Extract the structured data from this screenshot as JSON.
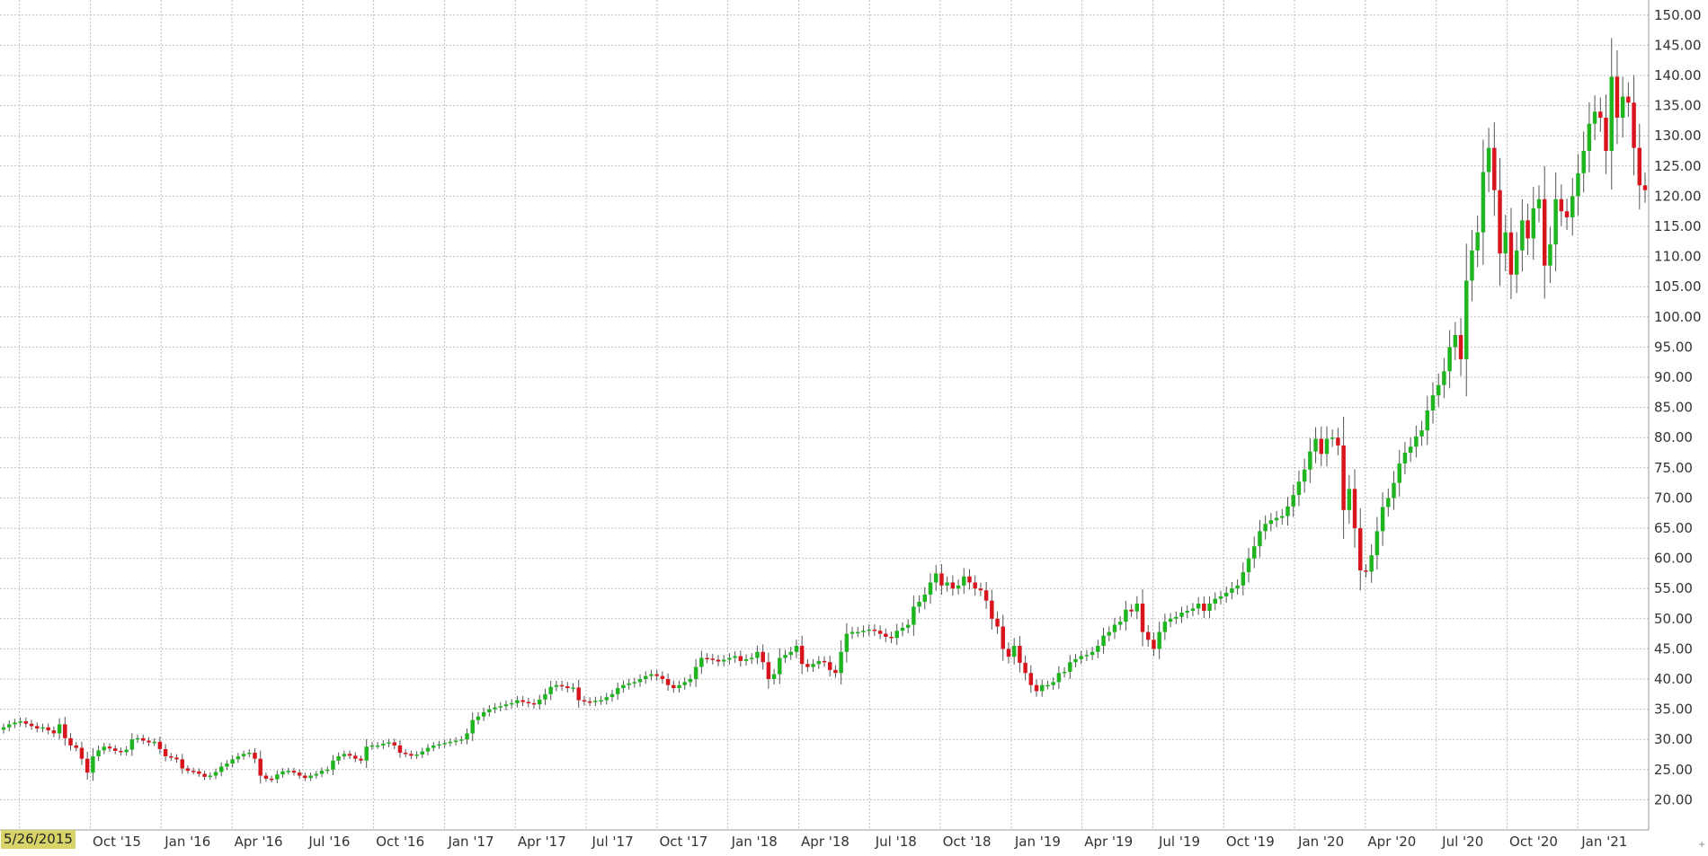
{
  "chart_data": {
    "type": "candlestick",
    "title": "",
    "xlabel": "",
    "ylabel": "",
    "start_label": "5/26/2015",
    "corner_glyph": "+",
    "ylim": [
      15,
      152.5
    ],
    "y_ticks": [
      "150.00",
      "145.00",
      "140.00",
      "135.00",
      "130.00",
      "125.00",
      "120.00",
      "115.00",
      "110.00",
      "105.00",
      "100.00",
      "95.00",
      "90.00",
      "85.00",
      "80.00",
      "75.00",
      "70.00",
      "65.00",
      "60.00",
      "55.00",
      "50.00",
      "45.00",
      "40.00",
      "35.00",
      "30.00",
      "25.00",
      "20.00"
    ],
    "x_ticks": [
      "Oct '15",
      "Jan '16",
      "Apr '16",
      "Jul '16",
      "Oct '16",
      "Jan '17",
      "Apr '17",
      "Jul '17",
      "Oct '17",
      "Jan '18",
      "Apr '18",
      "Jul '18",
      "Oct '18",
      "Jan '19",
      "Apr '19",
      "Jul '19",
      "Oct '19",
      "Jan '20",
      "Apr '20",
      "Jul '20",
      "Oct '20",
      "Jan '21"
    ],
    "grid": true,
    "colors": {
      "up": "#1fb51f",
      "down": "#d8141c",
      "grid": "#bdbdbd",
      "wick": "#555555",
      "badge": "#d8d46a"
    },
    "closes": [
      32,
      32.5,
      32.8,
      33,
      32.6,
      32.2,
      31.8,
      32,
      31.5,
      31,
      32.5,
      30.2,
      29,
      28.6,
      26.8,
      24.5,
      27.2,
      28.2,
      28.8,
      28.5,
      28.1,
      27.9,
      28.3,
      30,
      30.2,
      29.8,
      29.5,
      29.6,
      28.4,
      27.2,
      27,
      26.7,
      25.2,
      24.8,
      24.7,
      24.3,
      23.8,
      24,
      24.6,
      25.5,
      26,
      26.7,
      27.2,
      27.6,
      27.8,
      26.8,
      24,
      23.5,
      23.4,
      24.2,
      24.7,
      24.8,
      24.5,
      24,
      23.6,
      24,
      24.3,
      24.8,
      25,
      26.5,
      27.2,
      27.6,
      27.3,
      26.8,
      26.5,
      28.8,
      29,
      29,
      29.3,
      29.5,
      29,
      27.8,
      27.6,
      27.3,
      27.5,
      28,
      28.6,
      29,
      29.2,
      29.4,
      29.6,
      29.8,
      30,
      31,
      33.2,
      33.8,
      34.5,
      35,
      35.3,
      35.5,
      35.8,
      36,
      36.5,
      36.2,
      36,
      35.8,
      36.6,
      37.5,
      38.7,
      39,
      38.8,
      38.5,
      38.6,
      36.5,
      36.3,
      36.2,
      36.4,
      36.5,
      37,
      37.5,
      38.5,
      39,
      39.3,
      39.5,
      40,
      40.5,
      40.8,
      40.5,
      40,
      39,
      38.5,
      39,
      39.5,
      40,
      42,
      43.5,
      43.4,
      43.2,
      42.9,
      43.2,
      43.5,
      43.8,
      43,
      43.3,
      43.5,
      44.5,
      42.8,
      40,
      40.8,
      43.5,
      44,
      44.5,
      45.5,
      42.5,
      42,
      42.5,
      43,
      42.8,
      41.5,
      41,
      44.5,
      47.5,
      47.8,
      47.8,
      48,
      48.2,
      48,
      47.5,
      47,
      46.8,
      48,
      48.5,
      49,
      52,
      52.8,
      54,
      56,
      57.5,
      55.5,
      56,
      55,
      55.5,
      57,
      56,
      55,
      54.7,
      53,
      50,
      48.7,
      45,
      43.7,
      45.5,
      42.7,
      41,
      39,
      38,
      39,
      39,
      39.5,
      41,
      41.2,
      42.8,
      43.3,
      43.8,
      44,
      44.5,
      45.5,
      47.2,
      47.8,
      49,
      49.5,
      51.5,
      51.2,
      52.5,
      47.8,
      46.5,
      45,
      47.8,
      49.5,
      50,
      50.3,
      51,
      51.3,
      51.7,
      52.5,
      51.3,
      52.5,
      53.3,
      53.7,
      54.3,
      55,
      55.5,
      57.7,
      60,
      62,
      64.5,
      65.7,
      66.3,
      66.7,
      67,
      68.6,
      70.5,
      72.7,
      74.7,
      77.7,
      79.8,
      77.3,
      79.8,
      80,
      78.7,
      68,
      71.5,
      65,
      58,
      57.8,
      60.5,
      64.5,
      68.5,
      70,
      72.5,
      75.7,
      77.5,
      78.5,
      80.2,
      81.2,
      84.5,
      87,
      88.7,
      91,
      95,
      97,
      93,
      106,
      111,
      114,
      124,
      128,
      121,
      110.5,
      114,
      107,
      111,
      116,
      113,
      118,
      119.5,
      108.5,
      112,
      119.5,
      117.5,
      116.5,
      120,
      123.8,
      127.5,
      132,
      134,
      133,
      127.5,
      139.8,
      133,
      136.5,
      135.5,
      128,
      121.8,
      121
    ]
  }
}
